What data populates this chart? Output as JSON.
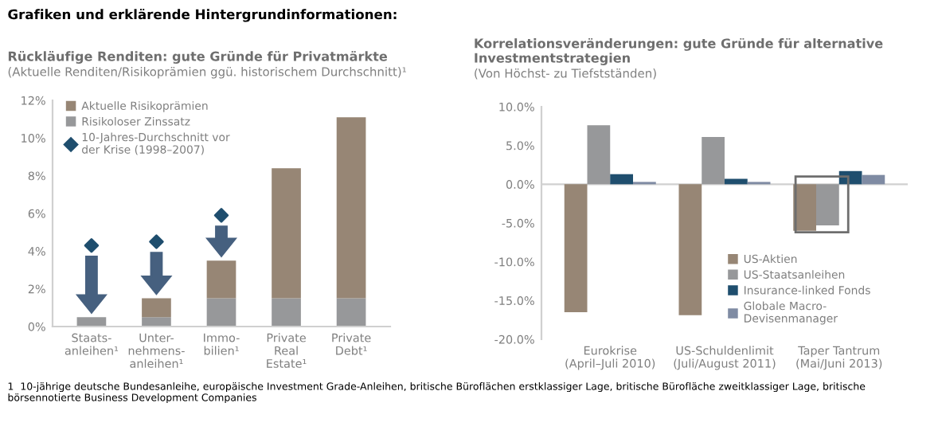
{
  "chart_data": [
    {
      "type": "bar",
      "title": "Rückläufige Renditen: gute Gründe für Privatmärkte",
      "subtitle": "(Aktuelle Renditen/Risikoprämien ggü. historischem Durchschnitt)¹",
      "stacked": true,
      "categories": [
        "Staats-\nanleihen¹",
        "Unter-\nnehmens-\nanleihen¹",
        "Immo-\nbilien¹",
        "Private\nReal\nEstate¹",
        "Private\nDebt¹"
      ],
      "series": [
        {
          "name": "Risikoloser Zinssatz",
          "color": "#97989a",
          "values": [
            0.5,
            0.5,
            1.5,
            1.5,
            1.5
          ]
        },
        {
          "name": "Aktuelle Risikoprämien",
          "color": "#978675",
          "values": [
            0,
            1.0,
            2.0,
            6.9,
            9.6
          ]
        },
        {
          "name": "10-Jahres-Durchschnitt vor\nder Krise (1998–2007)",
          "type": "scatter",
          "marker": "diamond",
          "color": "#1f4e6e",
          "values": [
            4.3,
            4.5,
            5.9,
            null,
            null
          ]
        }
      ],
      "ylim": [
        0,
        12
      ],
      "yticks": [
        {
          "value": 0,
          "label": "0%"
        },
        {
          "value": 2,
          "label": "2%"
        },
        {
          "value": 4,
          "label": "4%"
        },
        {
          "value": 6,
          "label": "6%"
        },
        {
          "value": 8,
          "label": "8%"
        },
        {
          "value": 10,
          "label": "10%"
        },
        {
          "value": 12,
          "label": "12%"
        }
      ],
      "legend": "top left",
      "annotations": [
        "Grafiken und erklärende Hintergrundinformationen:",
        "1  10-jährige deutsche Bundesanleihe, europäische Investment Grade-Anleihen, britische Büroflächen erstklassiger Lage, britische Bürofläche zweitklassiger Lage, britische börsennotierte Business Development Companies"
      ]
    },
    {
      "type": "bar",
      "title": "Korrelationsveränderungen: gute Gründe für alternative\nInvestmentstrategien",
      "subtitle": "(Von Höchst- zu Tiefstständen)",
      "categories": [
        "Eurokrise\n(April–Juli 2010)",
        "US-Schuldenlimit\n(Juli/August 2011)",
        "Taper Tantrum\n(Mai/Juni 2013)"
      ],
      "series": [
        {
          "name": "US-Aktien",
          "color": "#978675",
          "values": [
            -16.5,
            -16.9,
            -6.0
          ]
        },
        {
          "name": "US-Staatsanleihen",
          "color": "#97989a",
          "values": [
            7.6,
            6.1,
            -5.3
          ]
        },
        {
          "name": "Insurance-linked Fonds",
          "color": "#1f4e6e",
          "values": [
            1.3,
            0.7,
            1.7
          ]
        },
        {
          "name": "Globale Macro-\nDevisenmanager",
          "color": "#7f8ba3",
          "values": [
            0.3,
            0.3,
            1.2
          ]
        }
      ],
      "ylim": [
        -20,
        10
      ],
      "yticks": [
        {
          "value": -20,
          "label": "-20.0%"
        },
        {
          "value": -15,
          "label": "-15.0%"
        },
        {
          "value": -10,
          "label": "-10.0%"
        },
        {
          "value": -5,
          "label": "-5.0%"
        },
        {
          "value": 0,
          "label": "0.0%"
        },
        {
          "value": 5,
          "label": "5.0%"
        },
        {
          "value": 10,
          "label": "10.0%"
        }
      ],
      "legend": "bottom right"
    }
  ]
}
